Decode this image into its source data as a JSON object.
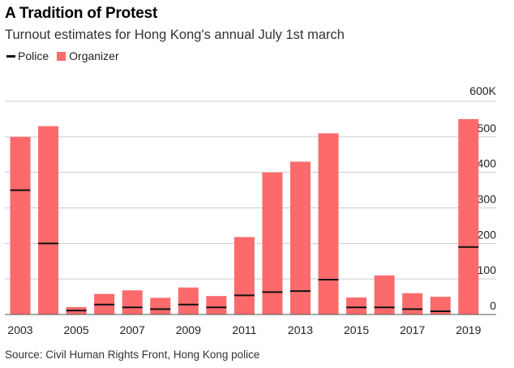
{
  "colors": {
    "organizer": "#fd6a6c",
    "police": "#111111",
    "grid": "#cccccc",
    "axis": "#555555"
  },
  "chart_data": {
    "type": "bar",
    "title": "A Tradition of Protest",
    "subtitle": "Turnout estimates for Hong Kong's annual July 1st march",
    "source": "Source: Civil Human Rights Front, Hong Kong police",
    "legend": {
      "police": "Police",
      "organizer": "Organizer",
      "placement": "top-left"
    },
    "categories": [
      "2003",
      "2004",
      "2005",
      "2006",
      "2007",
      "2008",
      "2009",
      "2010",
      "2011",
      "2012",
      "2013",
      "2014",
      "2015",
      "2016",
      "2017",
      "2018",
      "2019"
    ],
    "series": [
      {
        "name": "Organizer",
        "values": [
          500,
          530,
          21,
          58,
          68,
          47,
          76,
          52,
          218,
          400,
          430,
          510,
          48,
          110,
          60,
          50,
          550
        ]
      },
      {
        "name": "Police",
        "values": [
          350,
          200,
          11,
          28,
          20,
          15,
          28,
          20,
          54,
          63,
          66,
          98,
          20,
          20,
          15,
          9,
          190
        ]
      }
    ],
    "x_tick_labels": [
      "2003",
      "2005",
      "2007",
      "2009",
      "2011",
      "2013",
      "2015",
      "2017",
      "2019"
    ],
    "y_tick_values": [
      0,
      100,
      200,
      300,
      400,
      500,
      600
    ],
    "y_tick_labels": [
      "0",
      "100",
      "200",
      "300",
      "400",
      "500",
      "600K"
    ],
    "ylim": [
      0,
      600
    ],
    "xlabel": "",
    "ylabel": "",
    "grid": true
  }
}
